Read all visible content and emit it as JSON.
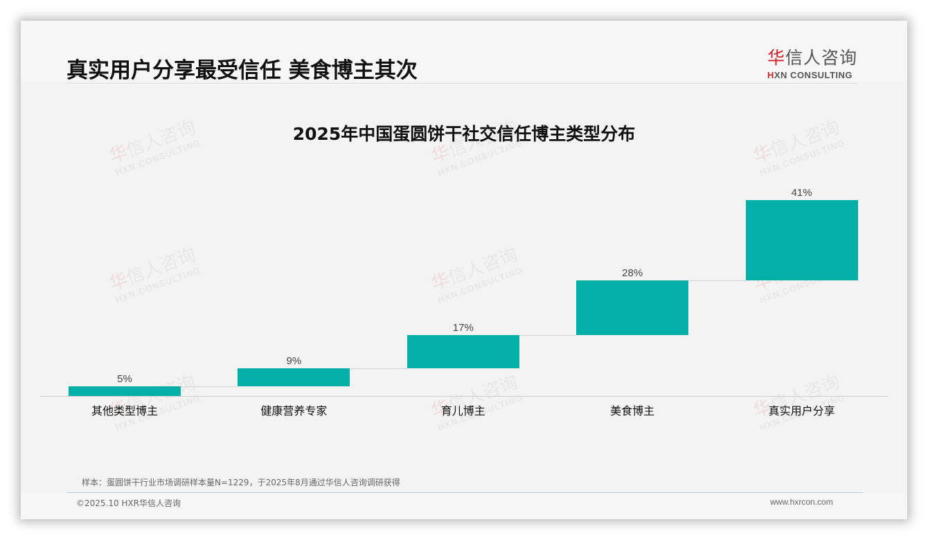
{
  "header": {
    "title": "真实用户分享最受信任 美食博主其次",
    "logo": {
      "cn_first": "华",
      "cn_rest": "信人咨询",
      "en_mark": "H",
      "en_rest": "XN CONSULTING"
    }
  },
  "watermark": {
    "cn_first": "华",
    "cn_rest": "信人咨询",
    "en": "HXN CONSULTING"
  },
  "chart_data": {
    "type": "waterfall",
    "title": "2025年中国蛋圆饼干社交信任博主类型分布",
    "categories": [
      "其他类型博主",
      "健康营养专家",
      "育儿博主",
      "美食博主",
      "真实用户分享"
    ],
    "values": [
      5,
      9,
      17,
      28,
      41
    ],
    "labels": [
      "5%",
      "9%",
      "17%",
      "28%",
      "41%"
    ],
    "cumulative_start": [
      0,
      5,
      14,
      31,
      59
    ],
    "cumulative_end": [
      5,
      14,
      31,
      59,
      100
    ],
    "unit": "%",
    "bar_color": "#04afa8",
    "xlabel": "",
    "ylabel": "",
    "ylim": [
      0,
      100
    ],
    "grid": false,
    "legend": "none"
  },
  "footer": {
    "source_note": "样本：蛋圆饼干行业市场调研样本量N=1229，于2025年8月通过华信人咨询调研获得",
    "copyright": "©2025.10 HXR华信人咨询",
    "website": "www.hxrcon.com"
  }
}
